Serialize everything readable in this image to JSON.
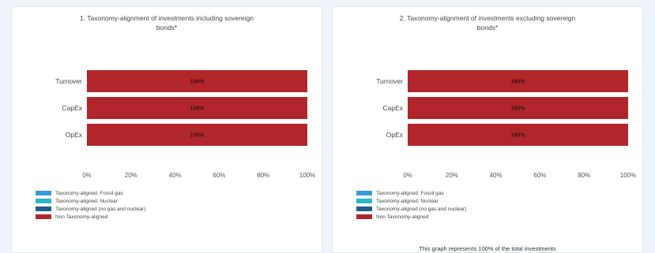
{
  "colors": {
    "fossil_gas": "#3a9bdc",
    "nuclear": "#29b6c6",
    "aligned_other": "#1f5c8a",
    "non_aligned": "#b0262a"
  },
  "chart_data": [
    {
      "type": "bar",
      "orientation": "horizontal",
      "stacked": true,
      "title": "1. Taxonomy-alignment of investments including sovereign bonds*",
      "categories": [
        "Turnover",
        "CapEx",
        "OpEx"
      ],
      "series": [
        {
          "name": "Taxonomy-aligned: Fossil gas",
          "values": [
            0,
            0,
            0
          ]
        },
        {
          "name": "Taxonomy-aligned: Nuclear",
          "values": [
            0,
            0,
            0
          ]
        },
        {
          "name": "Taxonomy-aligned (no gas and nuclear)",
          "values": [
            0,
            0,
            0
          ]
        },
        {
          "name": "Non Taxonomy-aligned",
          "values": [
            100,
            100,
            100
          ]
        }
      ],
      "data_labels": [
        "100%",
        "100%",
        "100%"
      ],
      "xticks": [
        "0%",
        "20%",
        "40%",
        "60%",
        "80%",
        "100%"
      ],
      "xlim": [
        0,
        100
      ],
      "legend_position": "bottom-left"
    },
    {
      "type": "bar",
      "orientation": "horizontal",
      "stacked": true,
      "title": "2. Taxonomy-alignment of investments excluding sovereign bonds*",
      "categories": [
        "Turnover",
        "CapEx",
        "OpEx"
      ],
      "series": [
        {
          "name": "Taxonomy-aligned: Fossil gas",
          "values": [
            0,
            0,
            0
          ]
        },
        {
          "name": "Taxonomy-aligned: Nuclear",
          "values": [
            0,
            0,
            0
          ]
        },
        {
          "name": "Taxonomy-aligned (no gas and nuclear)",
          "values": [
            0,
            0,
            0
          ]
        },
        {
          "name": "Non Taxonomy-aligned",
          "values": [
            100,
            100,
            100
          ]
        }
      ],
      "data_labels": [
        "100%",
        "100%",
        "100%"
      ],
      "xticks": [
        "0%",
        "20%",
        "40%",
        "60%",
        "80%",
        "100%"
      ],
      "xlim": [
        0,
        100
      ],
      "legend_position": "bottom-left",
      "note": "This graph represents  100% of the total investments"
    }
  ]
}
